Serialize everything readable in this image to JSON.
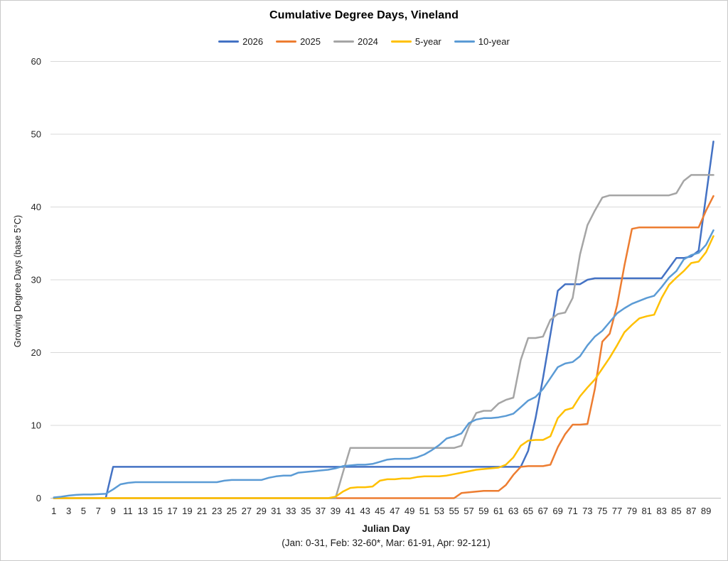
{
  "title": "Cumulative Degree Days, Vineland",
  "y_axis": {
    "label": "Growing Degree Days (base 5°C)",
    "ticks": [
      0,
      10,
      20,
      30,
      40,
      50,
      60
    ]
  },
  "x_axis": {
    "label": "Julian Day",
    "sublabel": "(Jan: 0-31, Feb: 32-60*, Mar: 61-91, Apr: 92-121)",
    "ticks": [
      1,
      3,
      5,
      7,
      9,
      11,
      13,
      15,
      17,
      19,
      21,
      23,
      25,
      27,
      29,
      31,
      33,
      35,
      37,
      39,
      41,
      43,
      45,
      47,
      49,
      51,
      53,
      55,
      57,
      59,
      61,
      63,
      65,
      67,
      69,
      71,
      73,
      75,
      77,
      79,
      81,
      83,
      85,
      87,
      89
    ]
  },
  "colors": {
    "gridline": "#d9d9d9",
    "axis_line": "#bfbfbf",
    "tick_text": "#262626"
  },
  "chart_data": {
    "type": "line",
    "title": "Cumulative Degree Days, Vineland",
    "xlabel": "Julian Day",
    "ylabel": "Growing Degree Days (base 5°C)",
    "xlim": [
      1,
      91
    ],
    "ylim": [
      0,
      60
    ],
    "grid": "horizontal",
    "legend_position": "top",
    "x": [
      1,
      2,
      3,
      4,
      5,
      6,
      7,
      8,
      9,
      10,
      11,
      12,
      13,
      14,
      15,
      16,
      17,
      18,
      19,
      20,
      21,
      22,
      23,
      24,
      25,
      26,
      27,
      28,
      29,
      30,
      31,
      32,
      33,
      34,
      35,
      36,
      37,
      38,
      39,
      40,
      41,
      42,
      43,
      44,
      45,
      46,
      47,
      48,
      49,
      50,
      51,
      52,
      53,
      54,
      55,
      56,
      57,
      58,
      59,
      60,
      61,
      62,
      63,
      64,
      65,
      66,
      67,
      68,
      69,
      70,
      71,
      72,
      73,
      74,
      75,
      76,
      77,
      78,
      79,
      80,
      81,
      82,
      83,
      84,
      85,
      86,
      87,
      88,
      89,
      90
    ],
    "series": [
      {
        "name": "2026",
        "color": "#4472C4",
        "values": [
          0,
          0,
          0,
          0,
          0,
          0,
          0,
          0,
          4.3,
          4.3,
          4.3,
          4.3,
          4.3,
          4.3,
          4.3,
          4.3,
          4.3,
          4.3,
          4.3,
          4.3,
          4.3,
          4.3,
          4.3,
          4.3,
          4.3,
          4.3,
          4.3,
          4.3,
          4.3,
          4.3,
          4.3,
          4.3,
          4.3,
          4.3,
          4.3,
          4.3,
          4.3,
          4.3,
          4.3,
          4.3,
          4.3,
          4.3,
          4.3,
          4.3,
          4.3,
          4.3,
          4.3,
          4.3,
          4.3,
          4.3,
          4.3,
          4.3,
          4.3,
          4.3,
          4.3,
          4.3,
          4.3,
          4.3,
          4.3,
          4.3,
          4.3,
          4.3,
          4.3,
          4.3,
          6.5,
          11,
          16.5,
          22.5,
          28.5,
          29.4,
          29.4,
          29.4,
          30,
          30.2,
          30.2,
          30.2,
          30.2,
          30.2,
          30.2,
          30.2,
          30.2,
          30.2,
          30.2,
          31.6,
          33,
          33,
          33.2,
          34,
          41.5,
          49
        ]
      },
      {
        "name": "2025",
        "color": "#ED7D31",
        "values": [
          0,
          0,
          0,
          0,
          0,
          0,
          0,
          0,
          0,
          0,
          0,
          0,
          0,
          0,
          0,
          0,
          0,
          0,
          0,
          0,
          0,
          0,
          0,
          0,
          0,
          0,
          0,
          0,
          0,
          0,
          0,
          0,
          0,
          0,
          0,
          0,
          0,
          0,
          0,
          0,
          0,
          0,
          0,
          0,
          0,
          0,
          0,
          0,
          0,
          0,
          0,
          0,
          0,
          0,
          0,
          0.7,
          0.8,
          0.9,
          1,
          1,
          1,
          1.8,
          3.2,
          4.3,
          4.4,
          4.4,
          4.4,
          4.6,
          7,
          8.8,
          10.1,
          10.1,
          10.2,
          15,
          21.5,
          22.6,
          26.5,
          32,
          37,
          37.2,
          37.2,
          37.2,
          37.2,
          37.2,
          37.2,
          37.2,
          37.2,
          37.2,
          39.5,
          41.5
        ]
      },
      {
        "name": "2024",
        "color": "#A5A5A5",
        "values": [
          0,
          0,
          0,
          0,
          0,
          0,
          0,
          0,
          0,
          0,
          0,
          0,
          0,
          0,
          0,
          0,
          0,
          0,
          0,
          0,
          0,
          0,
          0,
          0,
          0,
          0,
          0,
          0,
          0,
          0,
          0,
          0,
          0,
          0,
          0,
          0,
          0,
          0,
          0,
          3.5,
          6.9,
          6.9,
          6.9,
          6.9,
          6.9,
          6.9,
          6.9,
          6.9,
          6.9,
          6.9,
          6.9,
          6.9,
          6.9,
          6.9,
          6.9,
          7.2,
          9.8,
          11.7,
          12,
          12,
          13,
          13.5,
          13.8,
          19,
          22,
          22,
          22.2,
          24.5,
          25.3,
          25.5,
          27.5,
          33.5,
          37.5,
          39.5,
          41.3,
          41.6,
          41.6,
          41.6,
          41.6,
          41.6,
          41.6,
          41.6,
          41.6,
          41.6,
          41.9,
          43.6,
          44.4,
          44.4,
          44.4,
          44.4
        ]
      },
      {
        "name": "5-year",
        "color": "#FFC000",
        "values": [
          0,
          0,
          0,
          0,
          0,
          0,
          0,
          0,
          0,
          0,
          0,
          0,
          0,
          0,
          0,
          0,
          0,
          0,
          0,
          0,
          0,
          0,
          0,
          0,
          0,
          0,
          0,
          0,
          0,
          0,
          0,
          0,
          0,
          0,
          0,
          0,
          0,
          0,
          0.2,
          0.9,
          1.4,
          1.5,
          1.5,
          1.6,
          2.4,
          2.6,
          2.6,
          2.7,
          2.7,
          2.9,
          3,
          3,
          3,
          3.1,
          3.3,
          3.5,
          3.7,
          3.9,
          4,
          4.1,
          4.2,
          4.6,
          5.6,
          7.2,
          7.9,
          8,
          8,
          8.5,
          11,
          12.1,
          12.4,
          14,
          15.2,
          16.3,
          17.8,
          19.3,
          21,
          22.8,
          23.8,
          24.7,
          25,
          25.2,
          27.5,
          29.3,
          30.3,
          31.2,
          32.3,
          32.5,
          33.8,
          36
        ]
      },
      {
        "name": "10-year",
        "color": "#5B9BD5",
        "values": [
          0.1,
          0.2,
          0.35,
          0.45,
          0.5,
          0.5,
          0.55,
          0.6,
          1.2,
          1.9,
          2.1,
          2.2,
          2.2,
          2.2,
          2.2,
          2.2,
          2.2,
          2.2,
          2.2,
          2.2,
          2.2,
          2.2,
          2.2,
          2.4,
          2.5,
          2.5,
          2.5,
          2.5,
          2.5,
          2.8,
          3,
          3.1,
          3.1,
          3.5,
          3.6,
          3.7,
          3.8,
          3.9,
          4.1,
          4.4,
          4.5,
          4.6,
          4.6,
          4.7,
          5,
          5.3,
          5.4,
          5.4,
          5.4,
          5.6,
          6,
          6.6,
          7.3,
          8.2,
          8.5,
          8.9,
          10.3,
          10.8,
          11,
          11,
          11.1,
          11.3,
          11.6,
          12.5,
          13.4,
          13.9,
          15,
          16.5,
          18,
          18.5,
          18.7,
          19.5,
          21,
          22.2,
          23,
          24.2,
          25.4,
          26.1,
          26.7,
          27.1,
          27.5,
          27.8,
          29,
          30.3,
          31.2,
          32.8,
          33.4,
          33.7,
          34.8,
          36.8
        ]
      }
    ]
  }
}
